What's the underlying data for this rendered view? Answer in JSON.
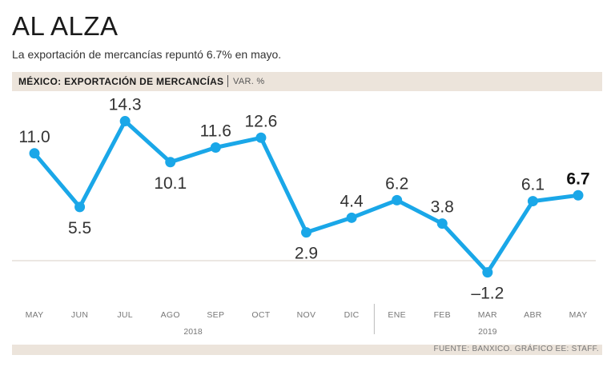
{
  "header": {
    "title": "AL ALZA",
    "subtitle": "La exportación de mercancías repuntó 6.7% en mayo.",
    "band_label": "MÉXICO: EXPORTACIÓN DE MERCANCÍAS",
    "band_unit": "VAR. %"
  },
  "footer": {
    "source": "FUENTE: BANXICO. GRÁFICO EE: STAFF."
  },
  "colors": {
    "line": "#1aa7e8",
    "band": "#ece4db",
    "zero_line": "#d9cfc4"
  },
  "chart_data": {
    "type": "line",
    "title": "MÉXICO: EXPORTACIÓN DE MERCANCÍAS",
    "ylabel": "VAR. %",
    "xlabel": "",
    "categories": [
      "MAY",
      "JUN",
      "JUL",
      "AGO",
      "SEP",
      "OCT",
      "NOV",
      "DIC",
      "ENE",
      "FEB",
      "MAR",
      "ABR",
      "MAY"
    ],
    "value_labels": [
      "11.0",
      "5.5",
      "14.3",
      "10.1",
      "11.6",
      "12.6",
      "2.9",
      "4.4",
      "6.2",
      "3.8",
      "–1.2",
      "6.1",
      "6.7"
    ],
    "series": [
      {
        "name": "Exportación de mercancías",
        "values": [
          11.0,
          5.5,
          14.3,
          10.1,
          11.6,
          12.6,
          2.9,
          4.4,
          6.2,
          3.8,
          -1.2,
          6.1,
          6.7
        ]
      }
    ],
    "years": [
      {
        "label": "2018",
        "from": 0,
        "to": 7
      },
      {
        "label": "2019",
        "from": 8,
        "to": 12
      }
    ],
    "label_above": [
      true,
      false,
      true,
      false,
      true,
      true,
      false,
      true,
      true,
      true,
      false,
      true,
      true
    ],
    "highlight_last": true,
    "ylim": [
      -2,
      16
    ],
    "grid": false
  }
}
